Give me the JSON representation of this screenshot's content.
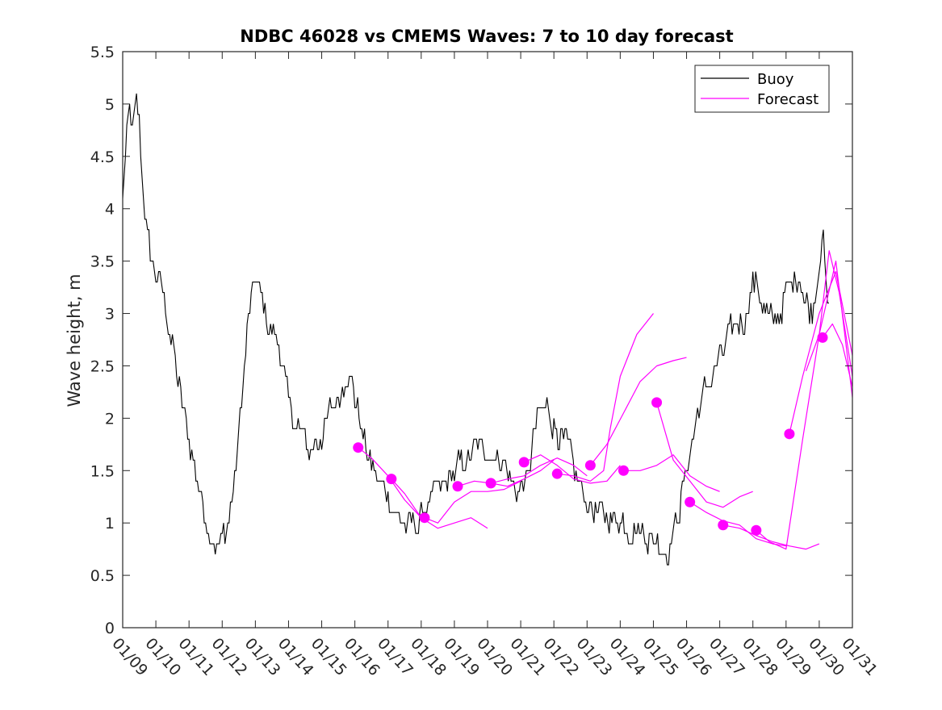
{
  "chart_data": {
    "type": "line",
    "title": "NDBC 46028 vs CMEMS Waves: 7 to 10 day forecast",
    "xlabel": "",
    "ylabel": "Wave height, m",
    "xlim": [
      0,
      22
    ],
    "ylim": [
      0,
      5.5
    ],
    "x_unit": "days since 01/09",
    "x_tick_labels": [
      "01/09",
      "01/10",
      "01/11",
      "01/12",
      "01/13",
      "01/14",
      "01/15",
      "01/16",
      "01/17",
      "01/18",
      "01/19",
      "01/20",
      "01/21",
      "01/22",
      "01/23",
      "01/24",
      "01/25",
      "01/26",
      "01/27",
      "01/28",
      "01/29",
      "01/30",
      "01/31"
    ],
    "y_tick_labels": [
      "0",
      "0.5",
      "1",
      "1.5",
      "2",
      "2.5",
      "3",
      "3.5",
      "4",
      "4.5",
      "5",
      "5.5"
    ],
    "y_ticks": [
      0,
      0.5,
      1,
      1.5,
      2,
      2.5,
      3,
      3.5,
      4,
      4.5,
      5,
      5.5
    ],
    "grid": false,
    "legend": {
      "position": "top-right",
      "entries": [
        {
          "label": "Buoy",
          "color": "#000000"
        },
        {
          "label": "Forecast",
          "color": "#ff00ff"
        }
      ]
    },
    "colors": {
      "buoy": "#000000",
      "forecast": "#ff00ff",
      "axes": "#262626"
    },
    "series": [
      {
        "name": "Buoy",
        "noise": 0.12,
        "x": [
          0,
          0.1,
          0.2,
          0.3,
          0.4,
          0.5,
          0.6,
          0.8,
          1.0,
          1.2,
          1.4,
          1.6,
          1.8,
          2.0,
          2.2,
          2.4,
          2.6,
          2.8,
          3.0,
          3.2,
          3.4,
          3.6,
          3.8,
          4.0,
          4.2,
          4.4,
          4.6,
          4.8,
          5.0,
          5.3,
          5.6,
          5.9,
          6.2,
          6.5,
          6.8,
          7.0,
          7.2,
          7.4,
          7.6,
          7.8,
          8.0,
          8.3,
          8.6,
          8.9,
          9.2,
          9.5,
          9.8,
          10.1,
          10.4,
          10.7,
          11.0,
          11.3,
          11.6,
          11.9,
          12.2,
          12.5,
          12.8,
          13.1,
          13.4,
          13.7,
          14.0,
          14.3,
          14.6,
          14.9,
          15.2,
          15.5,
          15.8,
          16.1,
          16.4,
          16.7,
          17.0,
          17.3,
          17.6,
          17.9,
          18.2,
          18.5,
          18.8,
          19.0,
          19.2,
          19.4,
          19.6,
          19.8,
          20.0,
          20.2,
          20.4,
          20.6,
          20.8,
          21.0,
          21.1,
          21.2,
          21.3
        ],
        "y": [
          4.1,
          4.6,
          4.9,
          4.7,
          5.0,
          4.8,
          4.2,
          3.6,
          3.4,
          3.2,
          2.9,
          2.5,
          2.1,
          1.8,
          1.5,
          1.2,
          0.95,
          0.8,
          0.85,
          1.0,
          1.5,
          2.2,
          3.0,
          3.3,
          3.1,
          2.9,
          2.8,
          2.6,
          2.1,
          1.9,
          1.7,
          1.8,
          2.0,
          2.2,
          2.5,
          2.2,
          1.9,
          1.6,
          1.5,
          1.35,
          1.25,
          1.05,
          0.95,
          1.0,
          1.2,
          1.3,
          1.4,
          1.5,
          1.6,
          1.7,
          1.7,
          1.65,
          1.5,
          1.3,
          1.4,
          2.0,
          2.1,
          1.9,
          1.7,
          1.4,
          1.2,
          1.1,
          1.05,
          1.05,
          1.0,
          0.95,
          0.9,
          0.85,
          0.75,
          1.0,
          1.5,
          2.0,
          2.3,
          2.5,
          2.7,
          2.9,
          3.0,
          3.3,
          3.2,
          3.0,
          2.9,
          3.0,
          3.2,
          3.3,
          3.4,
          3.1,
          3.0,
          3.5,
          3.9,
          3.2,
          3.0
        ]
      }
    ],
    "forecast_tracks": [
      {
        "x": [
          7.1,
          7.5,
          8.0,
          8.5,
          9.0
        ],
        "y": [
          1.72,
          1.62,
          1.45,
          1.22,
          1.05
        ]
      },
      {
        "x": [
          8.1,
          8.5,
          9.0,
          9.5,
          10.0,
          10.5,
          11.0
        ],
        "y": [
          1.42,
          1.28,
          1.05,
          0.95,
          1.0,
          1.05,
          0.95
        ]
      },
      {
        "x": [
          9.1,
          9.5,
          10.0,
          10.5,
          11.0,
          11.5,
          12.0
        ],
        "y": [
          1.05,
          1.0,
          1.2,
          1.3,
          1.3,
          1.32,
          1.4
        ]
      },
      {
        "x": [
          10.1,
          10.6,
          11.1,
          11.6,
          12.1,
          12.6,
          13.0
        ],
        "y": [
          1.35,
          1.4,
          1.38,
          1.35,
          1.42,
          1.5,
          1.6
        ]
      },
      {
        "x": [
          11.1,
          11.6,
          12.1,
          12.6,
          13.1,
          13.6,
          14.0
        ],
        "y": [
          1.38,
          1.42,
          1.45,
          1.55,
          1.62,
          1.55,
          1.45
        ]
      },
      {
        "x": [
          12.1,
          12.6,
          13.1,
          13.6,
          14.1,
          14.6,
          15.0
        ],
        "y": [
          1.58,
          1.65,
          1.55,
          1.42,
          1.38,
          1.4,
          1.55
        ]
      },
      {
        "x": [
          13.1,
          13.6,
          14.1,
          14.5,
          14.7,
          15.0,
          15.5,
          16.0
        ],
        "y": [
          1.47,
          1.45,
          1.4,
          1.5,
          1.9,
          2.4,
          2.8,
          3.0
        ]
      },
      {
        "x": [
          14.1,
          14.6,
          15.1,
          15.6,
          16.1,
          16.6,
          17.0
        ],
        "y": [
          1.55,
          1.75,
          2.05,
          2.35,
          2.5,
          2.55,
          2.58
        ]
      },
      {
        "x": [
          15.1,
          15.6,
          16.1,
          16.6,
          17.1,
          17.6,
          18.0
        ],
        "y": [
          1.5,
          1.5,
          1.55,
          1.65,
          1.45,
          1.35,
          1.3
        ]
      },
      {
        "x": [
          16.1,
          16.6,
          17.1,
          17.6,
          18.1,
          18.6,
          19.0
        ],
        "y": [
          2.15,
          1.6,
          1.4,
          1.2,
          1.15,
          1.25,
          1.3
        ]
      },
      {
        "x": [
          17.1,
          17.6,
          18.1,
          18.6,
          19.1,
          19.6,
          20.0
        ],
        "y": [
          1.2,
          1.1,
          1.02,
          0.98,
          0.85,
          0.8,
          0.78
        ]
      },
      {
        "x": [
          18.1,
          18.6,
          19.1,
          19.6,
          20.1,
          20.6,
          21.0
        ],
        "y": [
          0.98,
          0.95,
          0.88,
          0.82,
          0.78,
          0.75,
          0.8
        ]
      },
      {
        "x": [
          19.1,
          19.5,
          20.0,
          20.5,
          21.0,
          21.5,
          22.0
        ],
        "y": [
          0.93,
          0.82,
          0.75,
          1.8,
          2.8,
          3.5,
          2.2
        ]
      },
      {
        "x": [
          20.1,
          20.5,
          21.0,
          21.5,
          22.0
        ],
        "y": [
          1.85,
          2.4,
          3.0,
          3.4,
          2.6
        ]
      },
      {
        "x": [
          20.6,
          21.0,
          21.3,
          21.6,
          22.0
        ],
        "y": [
          2.45,
          2.8,
          3.6,
          3.2,
          2.4
        ]
      },
      {
        "x": [
          21.1,
          21.4,
          21.7,
          22.0
        ],
        "y": [
          2.77,
          2.9,
          2.7,
          2.3
        ]
      }
    ],
    "forecast_points": {
      "x": [
        7.1,
        8.1,
        9.1,
        10.1,
        11.1,
        12.1,
        13.1,
        14.1,
        15.1,
        16.1,
        17.1,
        18.1,
        19.1,
        20.1,
        21.1
      ],
      "y": [
        1.72,
        1.42,
        1.05,
        1.35,
        1.38,
        1.58,
        1.47,
        1.55,
        1.5,
        2.15,
        1.2,
        0.98,
        0.93,
        1.85,
        2.77
      ]
    }
  }
}
